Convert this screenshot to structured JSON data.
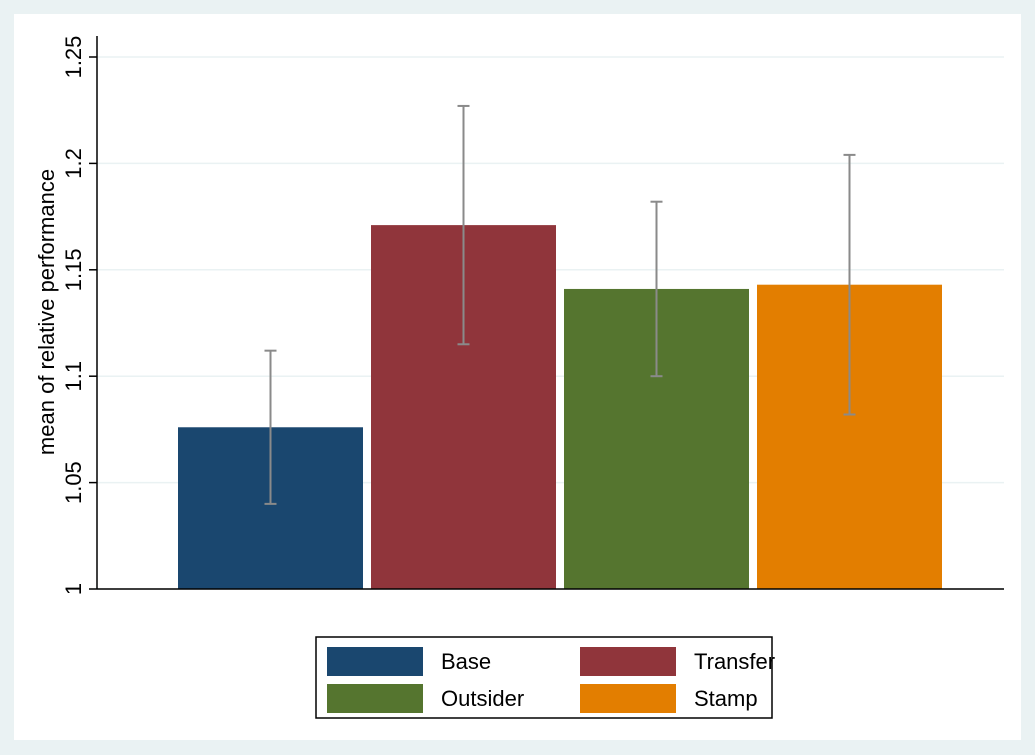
{
  "chart_data": {
    "type": "bar",
    "ylabel": "mean of relative performance",
    "categories": [
      null
    ],
    "series": [
      {
        "name": "Base",
        "color": "#1a476f",
        "values": [
          1.076
        ],
        "errors": [
          0.036
        ]
      },
      {
        "name": "Transfer",
        "color": "#90353b",
        "values": [
          1.171
        ],
        "errors": [
          0.056
        ]
      },
      {
        "name": "Outsider",
        "color": "#55752f",
        "values": [
          1.141
        ],
        "errors": [
          0.041
        ]
      },
      {
        "name": "Stamp",
        "color": "#e37e00",
        "values": [
          1.143
        ],
        "errors": [
          0.061
        ]
      }
    ],
    "ylim": [
      1,
      1.25
    ],
    "yticks": [
      1,
      1.05,
      1.1,
      1.15,
      1.2,
      1.25
    ],
    "grid": true,
    "error_bar_color": "#8a8a8a"
  }
}
